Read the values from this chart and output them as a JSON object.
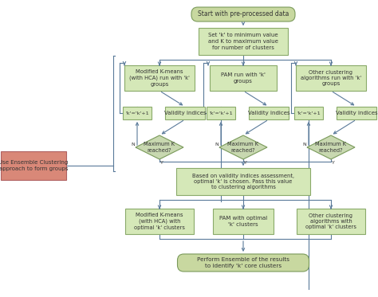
{
  "bg": "white",
  "rc": "#c8d8a0",
  "rb": "#7a9a5a",
  "rec": "#d5e8b8",
  "reb": "#8aaa6a",
  "dc": "#c8d8b0",
  "db": "#7a9a5a",
  "ec": "#d98878",
  "eb": "#b06060",
  "ac": "#5a7a9a",
  "tc": "#333333",
  "start_text": "Start with pre-processed data",
  "setk_text": "Set 'k' to minimum value\nand K to maximum value\nfor number of clusters",
  "mkm_text": "Modified K-means\n(with HCA) run with 'k'\ngroups",
  "pam_text": "PAM run with 'k'\ngroups",
  "other_text": "Other clustering\nalgorithms run with 'k'\ngroups",
  "kk1": "'k'='k'+1",
  "vi": "Validity indices",
  "maxk": "Maximum K\nreached?",
  "optimal_text": "Based on validity indices assessment,\noptimal 'k' is chosen. Pass this value\nto clustering algorithms",
  "mkm2_text": "Modified K-means\n(with HCA) with\noptimal 'k' clusters",
  "pam2_text": "PAM with optimal\n'k' clusters",
  "other2_text": "Other clustering\nalgorithms with\noptimal 'k' clusters",
  "perform_text": "Perform Ensemble of the results\nto identify 'k' core clusters",
  "ensemble_text": "Use Ensemble Clustering\napproach to form groups"
}
